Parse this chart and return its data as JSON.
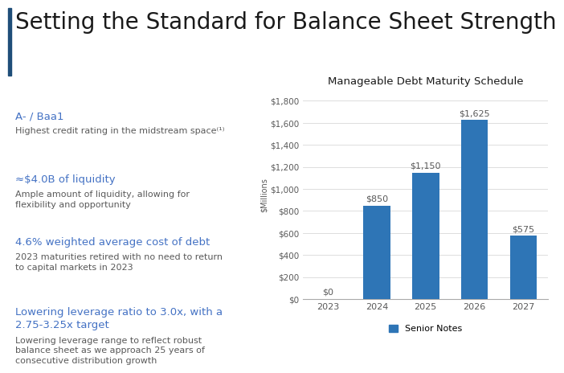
{
  "title": "Setting the Standard for Balance Sheet Strength",
  "title_fontsize": 20,
  "title_color": "#1a1a1a",
  "background_color": "#ffffff",
  "accent_bar_color": "#1f4e79",
  "chart_title": "Manageable Debt Maturity Schedule",
  "chart_title_fontsize": 9.5,
  "chart_bar_color": "#2e75b6",
  "years": [
    "2023",
    "2024",
    "2025",
    "2026",
    "2027"
  ],
  "values": [
    0,
    850,
    1150,
    1625,
    575
  ],
  "bar_labels": [
    "$0",
    "$850",
    "$1,150",
    "$1,625",
    "$575"
  ],
  "ylabel": "$Millions",
  "ylim": [
    0,
    1900
  ],
  "yticks": [
    0,
    200,
    400,
    600,
    800,
    1000,
    1200,
    1400,
    1600,
    1800
  ],
  "ytick_labels": [
    "$0",
    "$200",
    "$400",
    "$600",
    "$800",
    "$1,000",
    "$1,200",
    "$1,400",
    "$1,600",
    "$1,800"
  ],
  "legend_label": "Senior Notes",
  "bullet_title_color": "#4472c4",
  "bullet_text_color": "#595959",
  "bullet_items": [
    {
      "heading": "A- / Baa1",
      "body": "Highest credit rating in the midstream space⁽¹⁾",
      "heading_lines": 1,
      "body_lines": 1
    },
    {
      "heading": "≈$4.0B of liquidity",
      "body": "Ample amount of liquidity, allowing for\nflexibility and opportunity",
      "heading_lines": 1,
      "body_lines": 2
    },
    {
      "heading": "4.6% weighted average cost of debt",
      "body": "2023 maturities retired with no need to return\nto capital markets in 2023",
      "heading_lines": 1,
      "body_lines": 2
    },
    {
      "heading": "Lowering leverage ratio to 3.0x, with a\n2.75-3.25x target",
      "body": "Lowering leverage range to reflect robust\nbalance sheet as we approach 25 years of\nconsecutive distribution growth",
      "heading_lines": 2,
      "body_lines": 3
    }
  ],
  "heading_fontsize": 9.5,
  "body_fontsize": 8,
  "annotation_fontsize": 8
}
